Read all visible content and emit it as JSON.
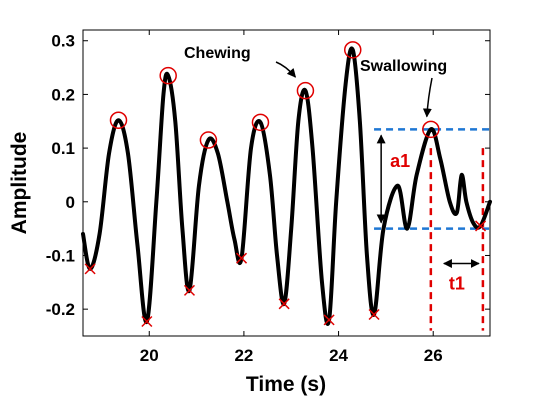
{
  "chart_data": {
    "type": "line",
    "title": "",
    "xlabel": "Time (s)",
    "ylabel": "Amplitude",
    "xlim": [
      18.6,
      27.2
    ],
    "ylim": [
      -0.25,
      0.32
    ],
    "xticks": [
      20,
      22,
      24,
      26
    ],
    "xtick_labels": [
      "20",
      "22",
      "24",
      "26"
    ],
    "yticks": [
      0.3,
      0.2,
      0.1,
      0,
      -0.1,
      -0.2
    ],
    "ytick_labels": [
      "0.3",
      "0.2",
      "0.1",
      "0",
      "-0.1",
      "-0.2"
    ],
    "grid": false,
    "legend": "none",
    "signal": {
      "color": "#000000",
      "points": [
        [
          18.6,
          -0.06
        ],
        [
          18.75,
          -0.125
        ],
        [
          18.95,
          -0.06
        ],
        [
          19.15,
          0.09
        ],
        [
          19.35,
          0.152
        ],
        [
          19.55,
          0.09
        ],
        [
          19.75,
          -0.08
        ],
        [
          19.95,
          -0.223
        ],
        [
          20.15,
          0.0
        ],
        [
          20.3,
          0.2
        ],
        [
          20.4,
          0.235
        ],
        [
          20.55,
          0.15
        ],
        [
          20.7,
          -0.05
        ],
        [
          20.85,
          -0.165
        ],
        [
          21.05,
          0.03
        ],
        [
          21.25,
          0.115
        ],
        [
          21.45,
          0.09
        ],
        [
          21.65,
          0.0
        ],
        [
          21.8,
          -0.07
        ],
        [
          21.95,
          -0.105
        ],
        [
          22.15,
          0.1
        ],
        [
          22.35,
          0.148
        ],
        [
          22.55,
          0.05
        ],
        [
          22.7,
          -0.1
        ],
        [
          22.85,
          -0.19
        ],
        [
          23.0,
          -0.05
        ],
        [
          23.15,
          0.15
        ],
        [
          23.3,
          0.207
        ],
        [
          23.45,
          0.1
        ],
        [
          23.65,
          -0.15
        ],
        [
          23.8,
          -0.22
        ],
        [
          23.95,
          0.0
        ],
        [
          24.15,
          0.22
        ],
        [
          24.3,
          0.283
        ],
        [
          24.45,
          0.15
        ],
        [
          24.6,
          -0.1
        ],
        [
          24.75,
          -0.21
        ],
        [
          24.95,
          -0.05
        ],
        [
          25.25,
          0.03
        ],
        [
          25.45,
          -0.05
        ],
        [
          25.65,
          0.05
        ],
        [
          25.95,
          0.135
        ],
        [
          26.15,
          0.08
        ],
        [
          26.35,
          0.0
        ],
        [
          26.5,
          -0.02
        ],
        [
          26.6,
          0.05
        ],
        [
          26.7,
          0.0
        ],
        [
          26.85,
          -0.04
        ],
        [
          27.0,
          -0.045
        ],
        [
          27.2,
          0.0
        ]
      ]
    },
    "chewing_peaks": {
      "marker": "circle",
      "color": "#e00000",
      "points": [
        [
          19.35,
          0.152
        ],
        [
          20.4,
          0.235
        ],
        [
          21.25,
          0.115
        ],
        [
          22.35,
          0.148
        ],
        [
          23.3,
          0.207
        ],
        [
          24.3,
          0.283
        ]
      ]
    },
    "swallowing_peak": {
      "marker": "circle",
      "color": "#e00000",
      "point": [
        25.95,
        0.135
      ]
    },
    "troughs": {
      "marker": "cross",
      "color": "#e00000",
      "points": [
        [
          18.75,
          -0.125
        ],
        [
          19.95,
          -0.223
        ],
        [
          20.85,
          -0.165
        ],
        [
          21.95,
          -0.105
        ],
        [
          22.85,
          -0.19
        ],
        [
          23.8,
          -0.22
        ],
        [
          24.75,
          -0.21
        ],
        [
          27.0,
          -0.045
        ]
      ]
    },
    "annotations": {
      "chewing": {
        "text": "Chewing",
        "arrow_target": [
          23.3,
          0.21
        ]
      },
      "swallowing": {
        "text": "Swallowing",
        "arrow_target": [
          25.95,
          0.14
        ]
      }
    },
    "measurements": {
      "a1": {
        "text": "a1",
        "y_top": 0.135,
        "y_bottom": -0.05,
        "x_from": 24.75,
        "x_to": 27.2,
        "arrow_x": 24.9,
        "line_color": "#1f77d4",
        "label_color": "#e00000"
      },
      "t1": {
        "text": "t1",
        "x_left": 25.95,
        "x_right": 27.05,
        "y_arrow": -0.115,
        "line_color": "#e00000",
        "label_color": "#e00000"
      }
    }
  }
}
